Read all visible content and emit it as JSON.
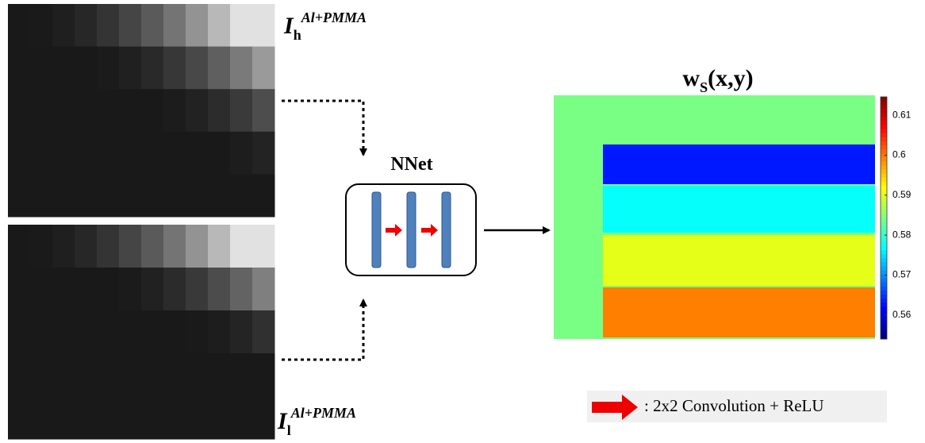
{
  "inputs": [
    {
      "base": "I",
      "sub": "h",
      "sup": "Al+PMMA"
    },
    {
      "base": "I",
      "sub": "l",
      "sup": "Al+PMMA"
    }
  ],
  "network": {
    "label": "NNet"
  },
  "output": {
    "base": "w",
    "sub": "S",
    "rest": "(x,y)",
    "colorbar": {
      "lim": [
        0.554,
        0.6146
      ],
      "ticks": [
        0.56,
        0.57,
        0.58,
        0.59,
        0.6,
        0.61
      ]
    },
    "background": 0.584,
    "bands": [
      0.563,
      0.577,
      0.5904,
      0.5995
    ]
  },
  "legend": {
    "text": ": 2x2 Convolution + ReLU"
  }
}
